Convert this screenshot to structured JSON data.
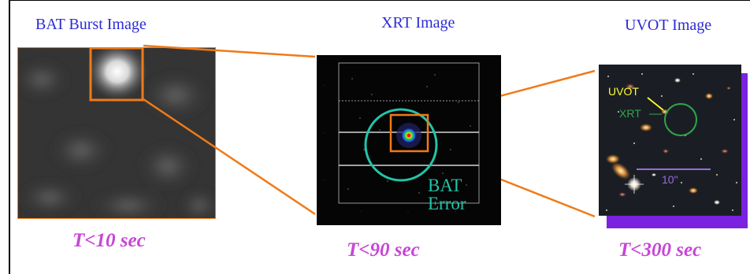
{
  "panels": {
    "bat": {
      "title": "BAT Burst Image",
      "time": "T<10 sec"
    },
    "xrt": {
      "title": "XRT Image",
      "time": "T<90 sec",
      "error_label_1": "BAT",
      "error_label_2": "Error"
    },
    "uvot": {
      "title": "UVOT Image",
      "time": "T<300 sec",
      "label_uvot": "UVOT",
      "label_xrt": "XRT",
      "scale_label": "10\""
    }
  },
  "colors": {
    "title": "#2b2bd6",
    "time": "#c845d8",
    "zoom_box": "#f07a18",
    "bat_error_circle": "#21c4a8",
    "uvot_label": "#ffff30",
    "xrt_label": "#2ea84a",
    "scale_bar": "#9a6ae0",
    "shadow": "#7a22e0"
  }
}
